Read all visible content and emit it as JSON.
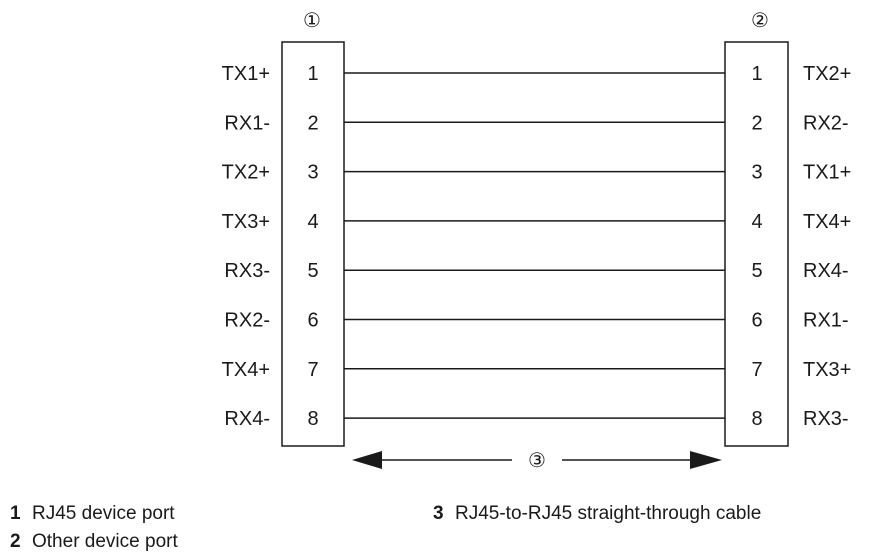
{
  "markers": {
    "left_port": "①",
    "right_port": "②",
    "cable": "③"
  },
  "left_port": {
    "pins": [
      {
        "number": "1",
        "signal": "TX1+"
      },
      {
        "number": "2",
        "signal": "RX1-"
      },
      {
        "number": "3",
        "signal": "TX2+"
      },
      {
        "number": "4",
        "signal": "TX3+"
      },
      {
        "number": "5",
        "signal": "RX3-"
      },
      {
        "number": "6",
        "signal": "RX2-"
      },
      {
        "number": "7",
        "signal": "TX4+"
      },
      {
        "number": "8",
        "signal": "RX4-"
      }
    ]
  },
  "right_port": {
    "pins": [
      {
        "number": "1",
        "signal": "TX2+"
      },
      {
        "number": "2",
        "signal": "RX2-"
      },
      {
        "number": "3",
        "signal": "TX1+"
      },
      {
        "number": "4",
        "signal": "TX4+"
      },
      {
        "number": "5",
        "signal": "RX4-"
      },
      {
        "number": "6",
        "signal": "RX1-"
      },
      {
        "number": "7",
        "signal": "TX3+"
      },
      {
        "number": "8",
        "signal": "RX3-"
      }
    ]
  },
  "legend": [
    {
      "number": "1",
      "text": "RJ45 device port"
    },
    {
      "number": "2",
      "text": "Other device port"
    },
    {
      "number": "3",
      "text": "RJ45-to-RJ45 straight-through cable"
    }
  ],
  "colors": {
    "line": "#1a1a1a",
    "text": "#1a1a1a",
    "background": "#ffffff"
  }
}
